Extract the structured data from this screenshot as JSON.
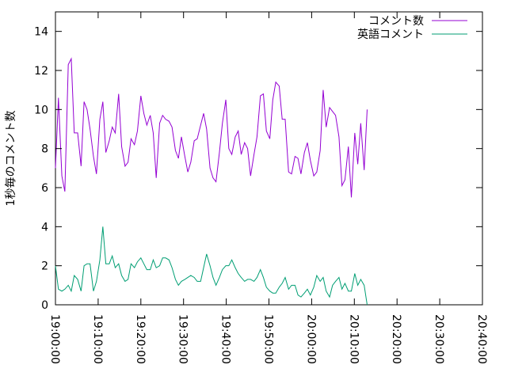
{
  "chart_data": {
    "type": "line",
    "ylabel": "1秒毎のコメント数",
    "xlabel": "",
    "ylim": [
      0,
      15
    ],
    "xlim_minutes": [
      0,
      100
    ],
    "yticks": [
      0,
      2,
      4,
      6,
      8,
      10,
      12,
      14
    ],
    "xticks": [
      {
        "t": 0,
        "label": "19:00:00"
      },
      {
        "t": 10,
        "label": "19:10:00"
      },
      {
        "t": 20,
        "label": "19:20:00"
      },
      {
        "t": 30,
        "label": "19:30:00"
      },
      {
        "t": 40,
        "label": "19:40:00"
      },
      {
        "t": 50,
        "label": "19:50:00"
      },
      {
        "t": 60,
        "label": "20:00:00"
      },
      {
        "t": 70,
        "label": "20:10:00"
      },
      {
        "t": 80,
        "label": "20:20:00"
      },
      {
        "t": 90,
        "label": "20:30:00"
      },
      {
        "t": 100,
        "label": "20:40:00"
      }
    ],
    "legend_position": "top-right",
    "grid": false,
    "series": [
      {
        "name": "コメント数",
        "color": "#9400d3",
        "points": [
          [
            0,
            7.0
          ],
          [
            0.7,
            10.6
          ],
          [
            1.5,
            6.6
          ],
          [
            2.2,
            5.8
          ],
          [
            3.0,
            12.3
          ],
          [
            3.7,
            12.6
          ],
          [
            4.4,
            8.8
          ],
          [
            5.2,
            8.8
          ],
          [
            6.0,
            7.1
          ],
          [
            6.7,
            10.4
          ],
          [
            7.4,
            10.0
          ],
          [
            8.1,
            9.0
          ],
          [
            8.9,
            7.6
          ],
          [
            9.6,
            6.7
          ],
          [
            10.4,
            9.5
          ],
          [
            11.1,
            10.4
          ],
          [
            11.8,
            7.8
          ],
          [
            12.6,
            8.4
          ],
          [
            13.3,
            9.1
          ],
          [
            14.0,
            8.8
          ],
          [
            14.8,
            10.8
          ],
          [
            15.5,
            8.1
          ],
          [
            16.3,
            7.1
          ],
          [
            17.0,
            7.3
          ],
          [
            17.7,
            8.5
          ],
          [
            18.5,
            8.2
          ],
          [
            19.2,
            8.9
          ],
          [
            20.0,
            10.7
          ],
          [
            20.7,
            9.8
          ],
          [
            21.4,
            9.2
          ],
          [
            22.2,
            9.7
          ],
          [
            22.9,
            8.8
          ],
          [
            23.6,
            6.5
          ],
          [
            24.4,
            9.3
          ],
          [
            25.1,
            9.7
          ],
          [
            25.8,
            9.5
          ],
          [
            26.6,
            9.4
          ],
          [
            27.3,
            9.1
          ],
          [
            28.1,
            7.9
          ],
          [
            28.8,
            7.5
          ],
          [
            29.5,
            8.6
          ],
          [
            30.3,
            7.6
          ],
          [
            31.0,
            6.8
          ],
          [
            31.7,
            7.3
          ],
          [
            32.5,
            8.4
          ],
          [
            33.2,
            8.5
          ],
          [
            34.0,
            9.2
          ],
          [
            34.7,
            9.8
          ],
          [
            35.4,
            9.0
          ],
          [
            36.2,
            7.0
          ],
          [
            36.9,
            6.5
          ],
          [
            37.6,
            6.3
          ],
          [
            38.4,
            7.8
          ],
          [
            39.1,
            9.3
          ],
          [
            39.9,
            10.5
          ],
          [
            40.6,
            8.0
          ],
          [
            41.3,
            7.7
          ],
          [
            42.1,
            8.6
          ],
          [
            42.8,
            8.9
          ],
          [
            43.5,
            7.7
          ],
          [
            44.3,
            8.3
          ],
          [
            45.0,
            8.0
          ],
          [
            45.7,
            6.6
          ],
          [
            46.5,
            7.7
          ],
          [
            47.2,
            8.6
          ],
          [
            48.0,
            10.7
          ],
          [
            48.7,
            10.8
          ],
          [
            49.4,
            8.9
          ],
          [
            50.2,
            8.5
          ],
          [
            50.9,
            10.5
          ],
          [
            51.6,
            11.4
          ],
          [
            52.4,
            11.2
          ],
          [
            53.1,
            9.5
          ],
          [
            53.8,
            9.5
          ],
          [
            54.6,
            6.8
          ],
          [
            55.3,
            6.7
          ],
          [
            56.1,
            7.6
          ],
          [
            56.8,
            7.5
          ],
          [
            57.5,
            6.7
          ],
          [
            58.3,
            7.8
          ],
          [
            59.0,
            8.3
          ],
          [
            59.7,
            7.4
          ],
          [
            60.5,
            6.6
          ],
          [
            61.2,
            6.8
          ],
          [
            62.0,
            7.9
          ],
          [
            62.7,
            11.0
          ],
          [
            63.4,
            9.1
          ],
          [
            64.2,
            10.1
          ],
          [
            64.9,
            9.9
          ],
          [
            65.6,
            9.7
          ],
          [
            66.4,
            8.6
          ],
          [
            67.1,
            6.1
          ],
          [
            67.8,
            6.4
          ],
          [
            68.6,
            8.1
          ],
          [
            69.3,
            5.5
          ],
          [
            70.1,
            8.8
          ],
          [
            70.8,
            7.2
          ],
          [
            71.5,
            9.3
          ],
          [
            72.3,
            6.9
          ],
          [
            73.0,
            10.0
          ]
        ]
      },
      {
        "name": "英語コメント",
        "color": "#009e73",
        "points": [
          [
            0,
            2.0
          ],
          [
            0.7,
            0.8
          ],
          [
            1.5,
            0.7
          ],
          [
            2.2,
            0.8
          ],
          [
            3.0,
            1.0
          ],
          [
            3.7,
            0.7
          ],
          [
            4.4,
            1.5
          ],
          [
            5.2,
            1.3
          ],
          [
            6.0,
            0.7
          ],
          [
            6.7,
            2.0
          ],
          [
            7.4,
            2.1
          ],
          [
            8.1,
            2.1
          ],
          [
            8.9,
            0.7
          ],
          [
            9.6,
            1.2
          ],
          [
            10.4,
            2.3
          ],
          [
            11.1,
            4.0
          ],
          [
            11.8,
            2.1
          ],
          [
            12.6,
            2.1
          ],
          [
            13.3,
            2.5
          ],
          [
            14.0,
            1.9
          ],
          [
            14.8,
            2.1
          ],
          [
            15.5,
            1.5
          ],
          [
            16.3,
            1.2
          ],
          [
            17.0,
            1.3
          ],
          [
            17.7,
            2.1
          ],
          [
            18.5,
            1.9
          ],
          [
            19.2,
            2.2
          ],
          [
            20.0,
            2.4
          ],
          [
            20.7,
            2.1
          ],
          [
            21.4,
            1.8
          ],
          [
            22.2,
            1.8
          ],
          [
            22.9,
            2.3
          ],
          [
            23.6,
            1.9
          ],
          [
            24.4,
            2.0
          ],
          [
            25.1,
            2.4
          ],
          [
            25.8,
            2.4
          ],
          [
            26.6,
            2.3
          ],
          [
            27.3,
            1.9
          ],
          [
            28.1,
            1.3
          ],
          [
            28.8,
            1.0
          ],
          [
            29.5,
            1.2
          ],
          [
            30.3,
            1.3
          ],
          [
            31.0,
            1.4
          ],
          [
            31.7,
            1.5
          ],
          [
            32.5,
            1.4
          ],
          [
            33.2,
            1.2
          ],
          [
            34.0,
            1.2
          ],
          [
            34.7,
            1.9
          ],
          [
            35.4,
            2.6
          ],
          [
            36.2,
            2.0
          ],
          [
            36.9,
            1.4
          ],
          [
            37.6,
            1.0
          ],
          [
            38.4,
            1.4
          ],
          [
            39.1,
            1.8
          ],
          [
            39.9,
            2.0
          ],
          [
            40.6,
            2.0
          ],
          [
            41.3,
            2.3
          ],
          [
            42.1,
            1.9
          ],
          [
            42.8,
            1.6
          ],
          [
            43.5,
            1.4
          ],
          [
            44.3,
            1.2
          ],
          [
            45.0,
            1.3
          ],
          [
            45.7,
            1.3
          ],
          [
            46.5,
            1.2
          ],
          [
            47.2,
            1.4
          ],
          [
            48.0,
            1.8
          ],
          [
            48.7,
            1.4
          ],
          [
            49.4,
            0.9
          ],
          [
            50.2,
            0.7
          ],
          [
            50.9,
            0.6
          ],
          [
            51.6,
            0.6
          ],
          [
            52.4,
            0.9
          ],
          [
            53.1,
            1.1
          ],
          [
            53.8,
            1.4
          ],
          [
            54.6,
            0.8
          ],
          [
            55.3,
            1.0
          ],
          [
            56.1,
            1.0
          ],
          [
            56.8,
            0.5
          ],
          [
            57.5,
            0.4
          ],
          [
            58.3,
            0.6
          ],
          [
            59.0,
            0.8
          ],
          [
            59.7,
            0.5
          ],
          [
            60.5,
            0.9
          ],
          [
            61.2,
            1.5
          ],
          [
            62.0,
            1.2
          ],
          [
            62.7,
            1.4
          ],
          [
            63.4,
            0.7
          ],
          [
            64.2,
            0.4
          ],
          [
            64.9,
            1.0
          ],
          [
            65.6,
            1.2
          ],
          [
            66.4,
            1.4
          ],
          [
            67.1,
            0.8
          ],
          [
            67.8,
            1.1
          ],
          [
            68.6,
            0.7
          ],
          [
            69.3,
            0.7
          ],
          [
            70.1,
            1.6
          ],
          [
            70.8,
            1.0
          ],
          [
            71.5,
            1.3
          ],
          [
            72.3,
            1.0
          ],
          [
            73.0,
            0.0
          ]
        ]
      }
    ]
  }
}
